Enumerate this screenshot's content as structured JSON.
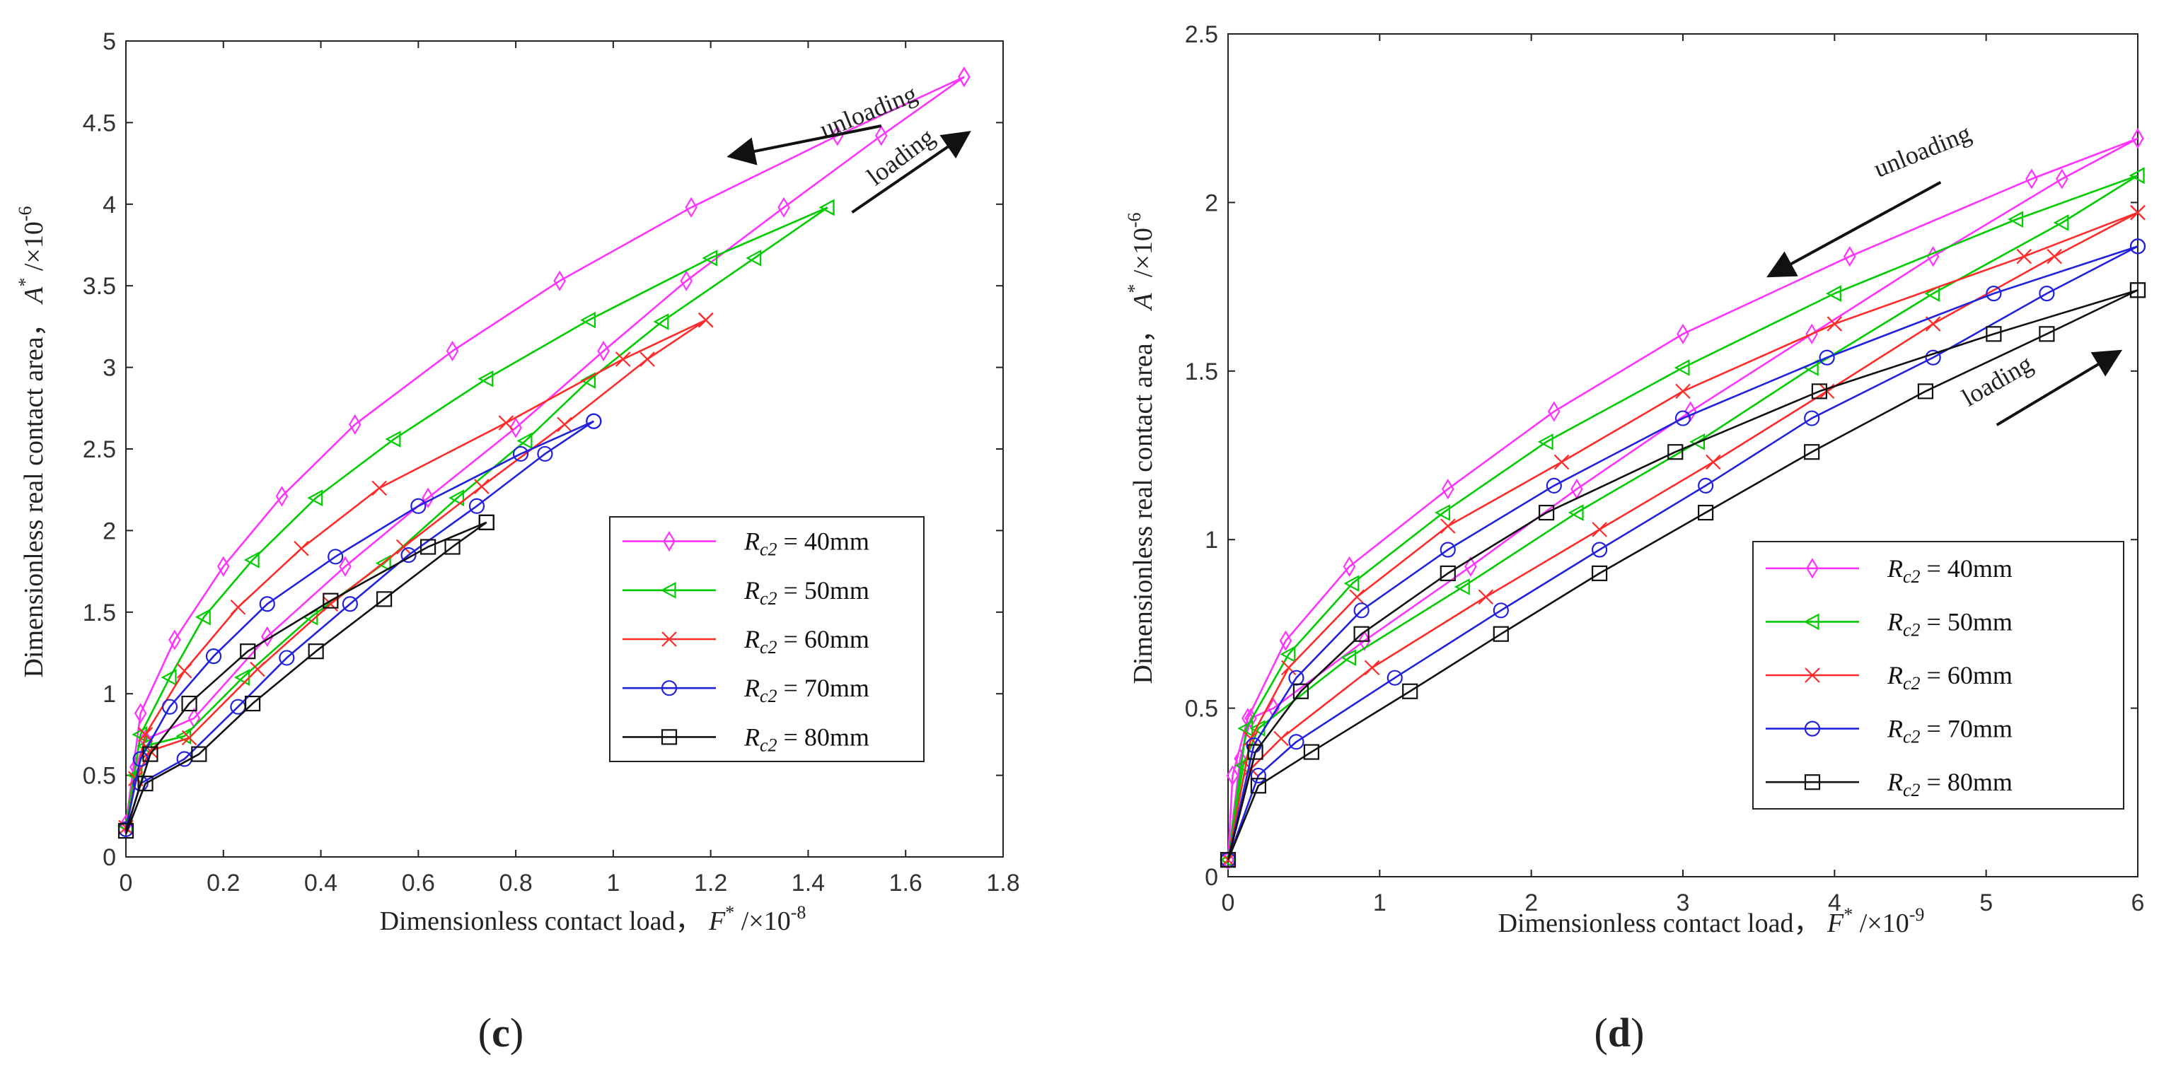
{
  "chart_data": [
    {
      "id": "c",
      "type": "line",
      "panel_label": "(c)",
      "xlabel": "Dimensionless contact load，",
      "xlabel_symbol": "F",
      "xlabel_unit": "/×10",
      "xlabel_exp": "-8",
      "ylabel": "Dimensionless real contact area，",
      "ylabel_symbol": "A",
      "ylabel_unit": "/×10",
      "ylabel_exp": "-6",
      "xlim": [
        0,
        1.8
      ],
      "ylim": [
        0,
        5
      ],
      "xticks": [
        0,
        0.2,
        0.4,
        0.6,
        0.8,
        1,
        1.2,
        1.4,
        1.6,
        1.8
      ],
      "xtick_labels": [
        "0",
        "0.2",
        "0.4",
        "0.6",
        "0.8",
        "1",
        "1.2",
        "1.4",
        "1.6",
        "1.8"
      ],
      "yticks": [
        0,
        0.5,
        1,
        1.5,
        2,
        2.5,
        3,
        3.5,
        4,
        4.5,
        5
      ],
      "ytick_labels": [
        "0",
        "0.5",
        "1",
        "1.5",
        "2",
        "2.5",
        "3",
        "3.5",
        "4",
        "4.5",
        "5"
      ],
      "annotations": [
        {
          "text": "unloading",
          "x": 1.53,
          "y": 4.52,
          "rotation": -22,
          "arrow": {
            "from": [
              1.55,
              4.48
            ],
            "to": [
              1.25,
              4.3
            ]
          }
        },
        {
          "text": "loading",
          "x": 1.6,
          "y": 4.25,
          "rotation": -37,
          "arrow": {
            "from": [
              1.49,
              3.95
            ],
            "to": [
              1.72,
              4.42
            ]
          }
        }
      ],
      "legend": {
        "position": "lower-right"
      },
      "series": [
        {
          "name": "Rc2 = 40mm",
          "r": "40mm",
          "color": "#ff33ff",
          "marker": "diamond",
          "loading": {
            "x": [
              0,
              0.02,
              0.04,
              0.14,
              0.29,
              0.45,
              0.62,
              0.8,
              0.98,
              1.15,
              1.35,
              1.55,
              1.72
            ],
            "y": [
              0.18,
              0.55,
              0.72,
              0.85,
              1.35,
              1.78,
              2.2,
              2.63,
              3.1,
              3.53,
              3.98,
              4.42,
              4.78
            ]
          },
          "unloading": {
            "x": [
              1.72,
              1.46,
              1.16,
              0.89,
              0.67,
              0.47,
              0.32,
              0.2,
              0.1,
              0.03,
              0
            ],
            "y": [
              4.78,
              4.42,
              3.98,
              3.53,
              3.1,
              2.65,
              2.21,
              1.78,
              1.33,
              0.88,
              0.2
            ]
          }
        },
        {
          "name": "Rc2 = 50mm",
          "r": "50mm",
          "color": "#00cc00",
          "marker": "triangle-left",
          "loading": {
            "x": [
              0,
              0.02,
              0.04,
              0.12,
              0.24,
              0.38,
              0.53,
              0.68,
              0.82,
              0.95,
              1.1,
              1.29,
              1.44
            ],
            "y": [
              0.17,
              0.5,
              0.68,
              0.74,
              1.1,
              1.47,
              1.8,
              2.2,
              2.55,
              2.92,
              3.28,
              3.67,
              3.98
            ]
          },
          "unloading": {
            "x": [
              1.44,
              1.2,
              0.95,
              0.74,
              0.55,
              0.39,
              0.26,
              0.16,
              0.09,
              0.03,
              0
            ],
            "y": [
              3.98,
              3.67,
              3.29,
              2.93,
              2.56,
              2.2,
              1.82,
              1.47,
              1.1,
              0.75,
              0.19
            ]
          }
        },
        {
          "name": "Rc2 = 60mm",
          "r": "60mm",
          "color": "#ff2a2a",
          "marker": "x",
          "loading": {
            "x": [
              0,
              0.02,
              0.05,
              0.13,
              0.27,
              0.42,
              0.57,
              0.73,
              0.9,
              1.07,
              1.19
            ],
            "y": [
              0.16,
              0.48,
              0.65,
              0.73,
              1.15,
              1.55,
              1.9,
              2.27,
              2.65,
              3.05,
              3.29
            ]
          },
          "unloading": {
            "x": [
              1.19,
              1.02,
              0.78,
              0.52,
              0.36,
              0.23,
              0.12,
              0.04,
              0
            ],
            "y": [
              3.29,
              3.05,
              2.66,
              2.26,
              1.89,
              1.53,
              1.14,
              0.75,
              0.18
            ]
          }
        },
        {
          "name": "Rc2 = 70mm",
          "r": "70mm",
          "color": "#2222dd",
          "marker": "circle",
          "loading": {
            "x": [
              0,
              0.03,
              0.12,
              0.23,
              0.33,
              0.46,
              0.58,
              0.72,
              0.86,
              0.96
            ],
            "y": [
              0.15,
              0.45,
              0.6,
              0.92,
              1.22,
              1.55,
              1.85,
              2.15,
              2.47,
              2.67
            ]
          },
          "unloading": {
            "x": [
              0.96,
              0.81,
              0.6,
              0.43,
              0.29,
              0.18,
              0.09,
              0.03,
              0
            ],
            "y": [
              2.67,
              2.47,
              2.15,
              1.84,
              1.55,
              1.23,
              0.92,
              0.6,
              0.17
            ]
          }
        },
        {
          "name": "Rc2 = 80mm",
          "r": "80mm",
          "color": "#111111",
          "marker": "square",
          "loading": {
            "x": [
              0,
              0.04,
              0.15,
              0.26,
              0.39,
              0.53,
              0.67,
              0.74
            ],
            "y": [
              0.14,
              0.45,
              0.63,
              0.94,
              1.26,
              1.58,
              1.9,
              2.05
            ]
          },
          "unloading": {
            "x": [
              0.74,
              0.62,
              0.42,
              0.25,
              0.13,
              0.05,
              0
            ],
            "y": [
              2.05,
              1.9,
              1.57,
              1.26,
              0.94,
              0.63,
              0.16
            ]
          }
        }
      ]
    },
    {
      "id": "d",
      "type": "line",
      "panel_label": "(d)",
      "xlabel": "Dimensionless contact load，",
      "xlabel_symbol": "F",
      "xlabel_unit": "/×10",
      "xlabel_exp": "-9",
      "ylabel": "Dimensionless real contact area，",
      "ylabel_symbol": "A",
      "ylabel_unit": "/×10",
      "ylabel_exp": "-6",
      "xlim": [
        0,
        6
      ],
      "ylim": [
        0,
        2.5
      ],
      "xticks": [
        0,
        1,
        2,
        3,
        4,
        5,
        6
      ],
      "xtick_labels": [
        "0",
        "1",
        "2",
        "3",
        "4",
        "5",
        "6"
      ],
      "yticks": [
        0,
        0.5,
        1,
        1.5,
        2,
        2.5
      ],
      "ytick_labels": [
        "0",
        "0.5",
        "1",
        "1.5",
        "2",
        "2.5"
      ],
      "annotations": [
        {
          "text": "unloading",
          "x": 4.6,
          "y": 2.13,
          "rotation": -22,
          "arrow": {
            "from": [
              4.7,
              2.06
            ],
            "to": [
              3.6,
              1.79
            ]
          }
        },
        {
          "text": "loading",
          "x": 5.1,
          "y": 1.45,
          "rotation": -30,
          "arrow": {
            "from": [
              5.07,
              1.34
            ],
            "to": [
              5.85,
              1.55
            ]
          }
        }
      ],
      "legend": {
        "position": "lower-right"
      },
      "series": [
        {
          "name": "Rc2 = 40mm",
          "r": "40mm",
          "color": "#ff33ff",
          "marker": "diamond",
          "loading": {
            "x": [
              0,
              0.08,
              0.15,
              0.3,
              0.9,
              1.6,
              2.3,
              3.05,
              3.85,
              4.65,
              5.5,
              6.0
            ],
            "y": [
              0.05,
              0.35,
              0.47,
              0.5,
              0.7,
              0.92,
              1.15,
              1.38,
              1.61,
              1.84,
              2.07,
              2.19
            ]
          },
          "unloading": {
            "x": [
              6.0,
              5.3,
              4.1,
              3.0,
              2.15,
              1.45,
              0.8,
              0.38,
              0.13,
              0.03,
              0
            ],
            "y": [
              2.19,
              2.07,
              1.84,
              1.61,
              1.38,
              1.15,
              0.92,
              0.7,
              0.47,
              0.3,
              0.05
            ]
          }
        },
        {
          "name": "Rc2 = 50mm",
          "r": "50mm",
          "color": "#00cc00",
          "marker": "triangle-left",
          "loading": {
            "x": [
              0,
              0.1,
              0.2,
              0.8,
              1.55,
              2.3,
              3.1,
              3.85,
              4.65,
              5.5,
              6.0
            ],
            "y": [
              0.05,
              0.33,
              0.44,
              0.65,
              0.86,
              1.08,
              1.29,
              1.51,
              1.73,
              1.94,
              2.08
            ]
          },
          "unloading": {
            "x": [
              6.0,
              5.2,
              4.0,
              3.0,
              2.1,
              1.42,
              0.82,
              0.4,
              0.12,
              0
            ],
            "y": [
              2.08,
              1.95,
              1.73,
              1.51,
              1.29,
              1.08,
              0.87,
              0.66,
              0.44,
              0.05
            ]
          }
        },
        {
          "name": "Rc2 = 60mm",
          "r": "60mm",
          "color": "#ff2a2a",
          "marker": "x",
          "loading": {
            "x": [
              0,
              0.15,
              0.35,
              0.95,
              1.7,
              2.45,
              3.2,
              3.95,
              4.65,
              5.45,
              6.0
            ],
            "y": [
              0.05,
              0.32,
              0.41,
              0.62,
              0.83,
              1.03,
              1.23,
              1.44,
              1.64,
              1.84,
              1.97
            ]
          },
          "unloading": {
            "x": [
              6.0,
              5.25,
              4.0,
              3.0,
              2.2,
              1.45,
              0.85,
              0.4,
              0.15,
              0
            ],
            "y": [
              1.97,
              1.84,
              1.64,
              1.44,
              1.23,
              1.04,
              0.83,
              0.62,
              0.41,
              0.05
            ]
          }
        },
        {
          "name": "Rc2 = 70mm",
          "r": "70mm",
          "color": "#2222dd",
          "marker": "circle",
          "loading": {
            "x": [
              0,
              0.2,
              0.45,
              1.1,
              1.8,
              2.45,
              3.15,
              3.85,
              4.65,
              5.4,
              6.0
            ],
            "y": [
              0.05,
              0.3,
              0.4,
              0.59,
              0.79,
              0.97,
              1.16,
              1.36,
              1.54,
              1.73,
              1.87
            ]
          },
          "unloading": {
            "x": [
              6.0,
              5.05,
              3.95,
              3.0,
              2.15,
              1.45,
              0.88,
              0.45,
              0.17,
              0
            ],
            "y": [
              1.87,
              1.73,
              1.54,
              1.36,
              1.16,
              0.97,
              0.79,
              0.59,
              0.39,
              0.05
            ]
          }
        },
        {
          "name": "Rc2 = 80mm",
          "r": "80mm",
          "color": "#111111",
          "marker": "square",
          "loading": {
            "x": [
              0,
              0.2,
              0.55,
              1.2,
              1.8,
              2.45,
              3.15,
              3.85,
              4.6,
              5.4,
              6.0
            ],
            "y": [
              0.05,
              0.27,
              0.37,
              0.55,
              0.72,
              0.9,
              1.08,
              1.26,
              1.44,
              1.61,
              1.74
            ]
          },
          "unloading": {
            "x": [
              6.0,
              5.05,
              3.9,
              2.95,
              2.1,
              1.45,
              0.88,
              0.48,
              0.18,
              0
            ],
            "y": [
              1.74,
              1.61,
              1.44,
              1.26,
              1.08,
              0.9,
              0.72,
              0.55,
              0.37,
              0.05
            ]
          }
        }
      ]
    }
  ]
}
